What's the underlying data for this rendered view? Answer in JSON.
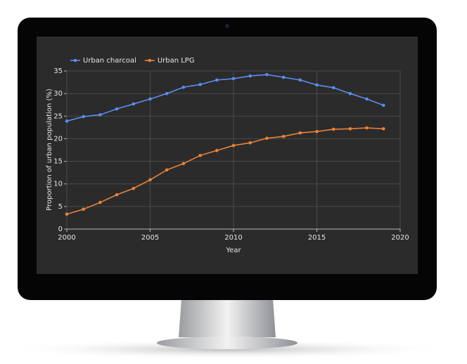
{
  "chart_data": {
    "type": "line",
    "x_label": "Year",
    "y_label": "Proportion of urban population (%)",
    "x": [
      2000,
      2001,
      2002,
      2003,
      2004,
      2005,
      2006,
      2007,
      2008,
      2009,
      2010,
      2011,
      2012,
      2013,
      2014,
      2015,
      2016,
      2017,
      2018,
      2019
    ],
    "series": [
      {
        "name": "Urban charcoal",
        "color": "#5b8def",
        "values": [
          23.9,
          24.9,
          25.3,
          26.6,
          27.7,
          28.8,
          30.0,
          31.4,
          32.0,
          33.0,
          33.3,
          33.9,
          34.2,
          33.6,
          33.0,
          31.9,
          31.3,
          30.0,
          28.8,
          27.4
        ]
      },
      {
        "name": "Urban LPG",
        "color": "#e8823a",
        "values": [
          3.3,
          4.4,
          5.9,
          7.6,
          9.0,
          10.9,
          13.1,
          14.5,
          16.3,
          17.4,
          18.5,
          19.1,
          20.1,
          20.5,
          21.3,
          21.6,
          22.1,
          22.2,
          22.4,
          22.2
        ]
      }
    ],
    "xlim": [
      2000,
      2020
    ],
    "xticks": [
      2000,
      2005,
      2010,
      2015,
      2020
    ],
    "ylim": [
      0,
      35
    ],
    "yticks": [
      0,
      5,
      10,
      15,
      20,
      25,
      30,
      35
    ],
    "grid": true,
    "legend": "top-left"
  }
}
